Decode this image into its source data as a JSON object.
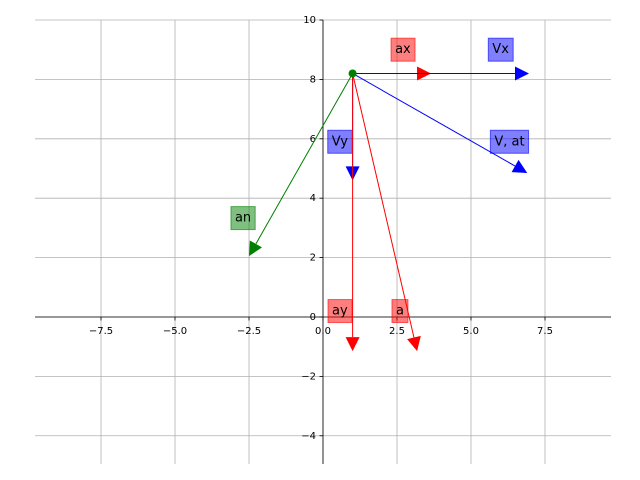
{
  "chart_data": {
    "type": "vector",
    "xlim": [
      -9.73,
      9.73
    ],
    "ylim": [
      -4.95,
      10
    ],
    "xticks": [
      {
        "value": -7.5,
        "label": "−7.5"
      },
      {
        "value": -5,
        "label": "−5.0"
      },
      {
        "value": -2.5,
        "label": "−2.5"
      },
      {
        "value": 0,
        "label": "0.0"
      },
      2.5,
      {
        "value": 5,
        "label": "5.0"
      },
      7.5
    ],
    "yticks": [
      {
        "value": -4,
        "label": "−4"
      },
      {
        "value": -2,
        "label": "−2"
      },
      0,
      2,
      4,
      6,
      8,
      10
    ],
    "grid": true,
    "point": [
      1,
      8.2
    ],
    "point_color": "#008000",
    "vectors": [
      {
        "name": "ax",
        "color": "#ff0000",
        "dx": 2.65,
        "dy": 0,
        "label_at": [
          2.7,
          9.0
        ]
      },
      {
        "name": "Vx",
        "color": "#0000ff",
        "dx": 5.96,
        "dy": 0,
        "label_at": [
          6.0,
          9.0
        ]
      },
      {
        "name": "V, at",
        "color": "#0000ff",
        "dx": 5.9,
        "dy": -3.35,
        "label_at": [
          6.3,
          5.9
        ]
      },
      {
        "name": "Vy",
        "color": "#0000ff",
        "dx": 0,
        "dy": -3.6,
        "label_at": [
          0.57,
          5.9
        ]
      },
      {
        "name": "an",
        "color": "#008000",
        "dx": -3.5,
        "dy": -6.15,
        "label_at": [
          -2.7,
          3.33
        ]
      },
      {
        "name": "ay",
        "color": "#ff0000",
        "dx": 0,
        "dy": -9.35,
        "label_at": [
          0.57,
          0.2
        ]
      },
      {
        "name": "a",
        "color": "#ff0000",
        "dx": 2.18,
        "dy": -9.35,
        "label_at": [
          2.6,
          0.2
        ]
      }
    ]
  }
}
